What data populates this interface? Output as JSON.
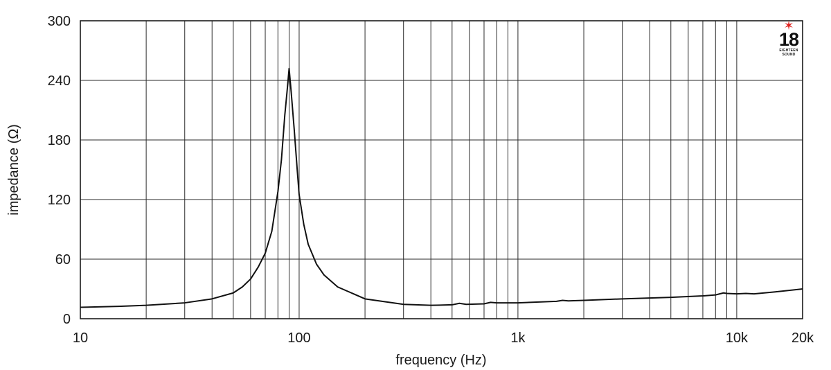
{
  "chart_data": {
    "type": "line",
    "xlabel": "frequency (Hz)",
    "ylabel": "impedance (Ω)",
    "xscale": "log",
    "xlim": [
      10,
      20000
    ],
    "ylim": [
      0,
      300
    ],
    "x_ticks": [
      {
        "value": 10,
        "label": "10"
      },
      {
        "value": 100,
        "label": "100"
      },
      {
        "value": 1000,
        "label": "1k"
      },
      {
        "value": 10000,
        "label": "10k"
      },
      {
        "value": 20000,
        "label": "20k"
      }
    ],
    "y_ticks": [
      {
        "value": 0,
        "label": "0"
      },
      {
        "value": 60,
        "label": "60"
      },
      {
        "value": 120,
        "label": "120"
      },
      {
        "value": 180,
        "label": "180"
      },
      {
        "value": 240,
        "label": "240"
      },
      {
        "value": 300,
        "label": "300"
      }
    ],
    "x_gridlines": [
      10,
      20,
      30,
      40,
      50,
      60,
      70,
      80,
      90,
      100,
      200,
      300,
      400,
      500,
      600,
      700,
      800,
      900,
      1000,
      2000,
      3000,
      4000,
      5000,
      6000,
      7000,
      8000,
      9000,
      10000,
      20000
    ],
    "y_gridlines": [
      0,
      60,
      120,
      180,
      240,
      300
    ],
    "grid": true,
    "series": [
      {
        "color": "#111111",
        "x": [
          10,
          15,
          20,
          30,
          40,
          50,
          55,
          60,
          65,
          70,
          75,
          80,
          83,
          86,
          88,
          90,
          92,
          95,
          98,
          100,
          105,
          110,
          120,
          130,
          150,
          200,
          300,
          400,
          500,
          540,
          580,
          700,
          750,
          800,
          1000,
          1500,
          1600,
          1700,
          2000,
          3000,
          5000,
          7000,
          8000,
          8700,
          9000,
          10000,
          11000,
          12000,
          15000,
          20000
        ],
        "y": [
          11.5,
          12.5,
          13.5,
          16,
          20,
          26,
          32,
          40,
          52,
          66,
          88,
          128,
          160,
          205,
          228,
          252,
          228,
          190,
          150,
          125,
          95,
          75,
          55,
          44,
          32,
          20,
          14.5,
          13.5,
          14,
          15.5,
          14.5,
          15,
          16.5,
          16,
          16,
          17.5,
          18.5,
          18,
          18.5,
          20,
          21.5,
          23,
          24,
          26,
          25.5,
          25,
          25.5,
          25,
          27,
          30
        ]
      }
    ]
  },
  "logo": {
    "number": "18",
    "line1": "EIGHTEEN",
    "line2": "SOUND"
  }
}
